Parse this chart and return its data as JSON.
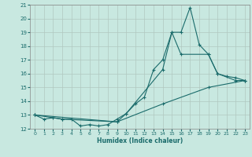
{
  "xlabel": "Humidex (Indice chaleur)",
  "background_color": "#c8e8e0",
  "grid_color": "#b0c8c0",
  "line_color": "#1a6b6b",
  "spine_color": "#888888",
  "xlim": [
    -0.5,
    23.5
  ],
  "ylim": [
    12,
    21
  ],
  "yticks": [
    12,
    13,
    14,
    15,
    16,
    17,
    18,
    19,
    20,
    21
  ],
  "xticks": [
    0,
    1,
    2,
    3,
    4,
    5,
    6,
    7,
    8,
    9,
    10,
    11,
    12,
    13,
    14,
    15,
    16,
    17,
    18,
    19,
    20,
    21,
    22,
    23
  ],
  "series1_x": [
    0,
    1,
    2,
    3,
    4,
    5,
    6,
    7,
    8,
    9,
    10,
    11,
    12,
    13,
    14,
    15,
    16,
    17,
    18,
    19,
    20,
    21,
    22,
    23
  ],
  "series1_y": [
    13.0,
    12.7,
    12.8,
    12.7,
    12.7,
    12.2,
    12.3,
    12.2,
    12.3,
    12.7,
    13.1,
    13.8,
    14.3,
    16.3,
    17.0,
    19.0,
    19.0,
    20.8,
    18.1,
    17.4,
    16.0,
    15.8,
    15.7,
    15.5
  ],
  "series2_x": [
    0,
    3,
    9,
    10,
    14,
    15,
    16,
    19,
    20,
    22,
    23
  ],
  "series2_y": [
    13.0,
    12.7,
    12.5,
    13.1,
    16.3,
    19.0,
    17.4,
    17.4,
    16.0,
    15.5,
    15.5
  ],
  "series3_x": [
    0,
    9,
    14,
    19,
    23
  ],
  "series3_y": [
    13.0,
    12.5,
    13.8,
    15.0,
    15.5
  ]
}
